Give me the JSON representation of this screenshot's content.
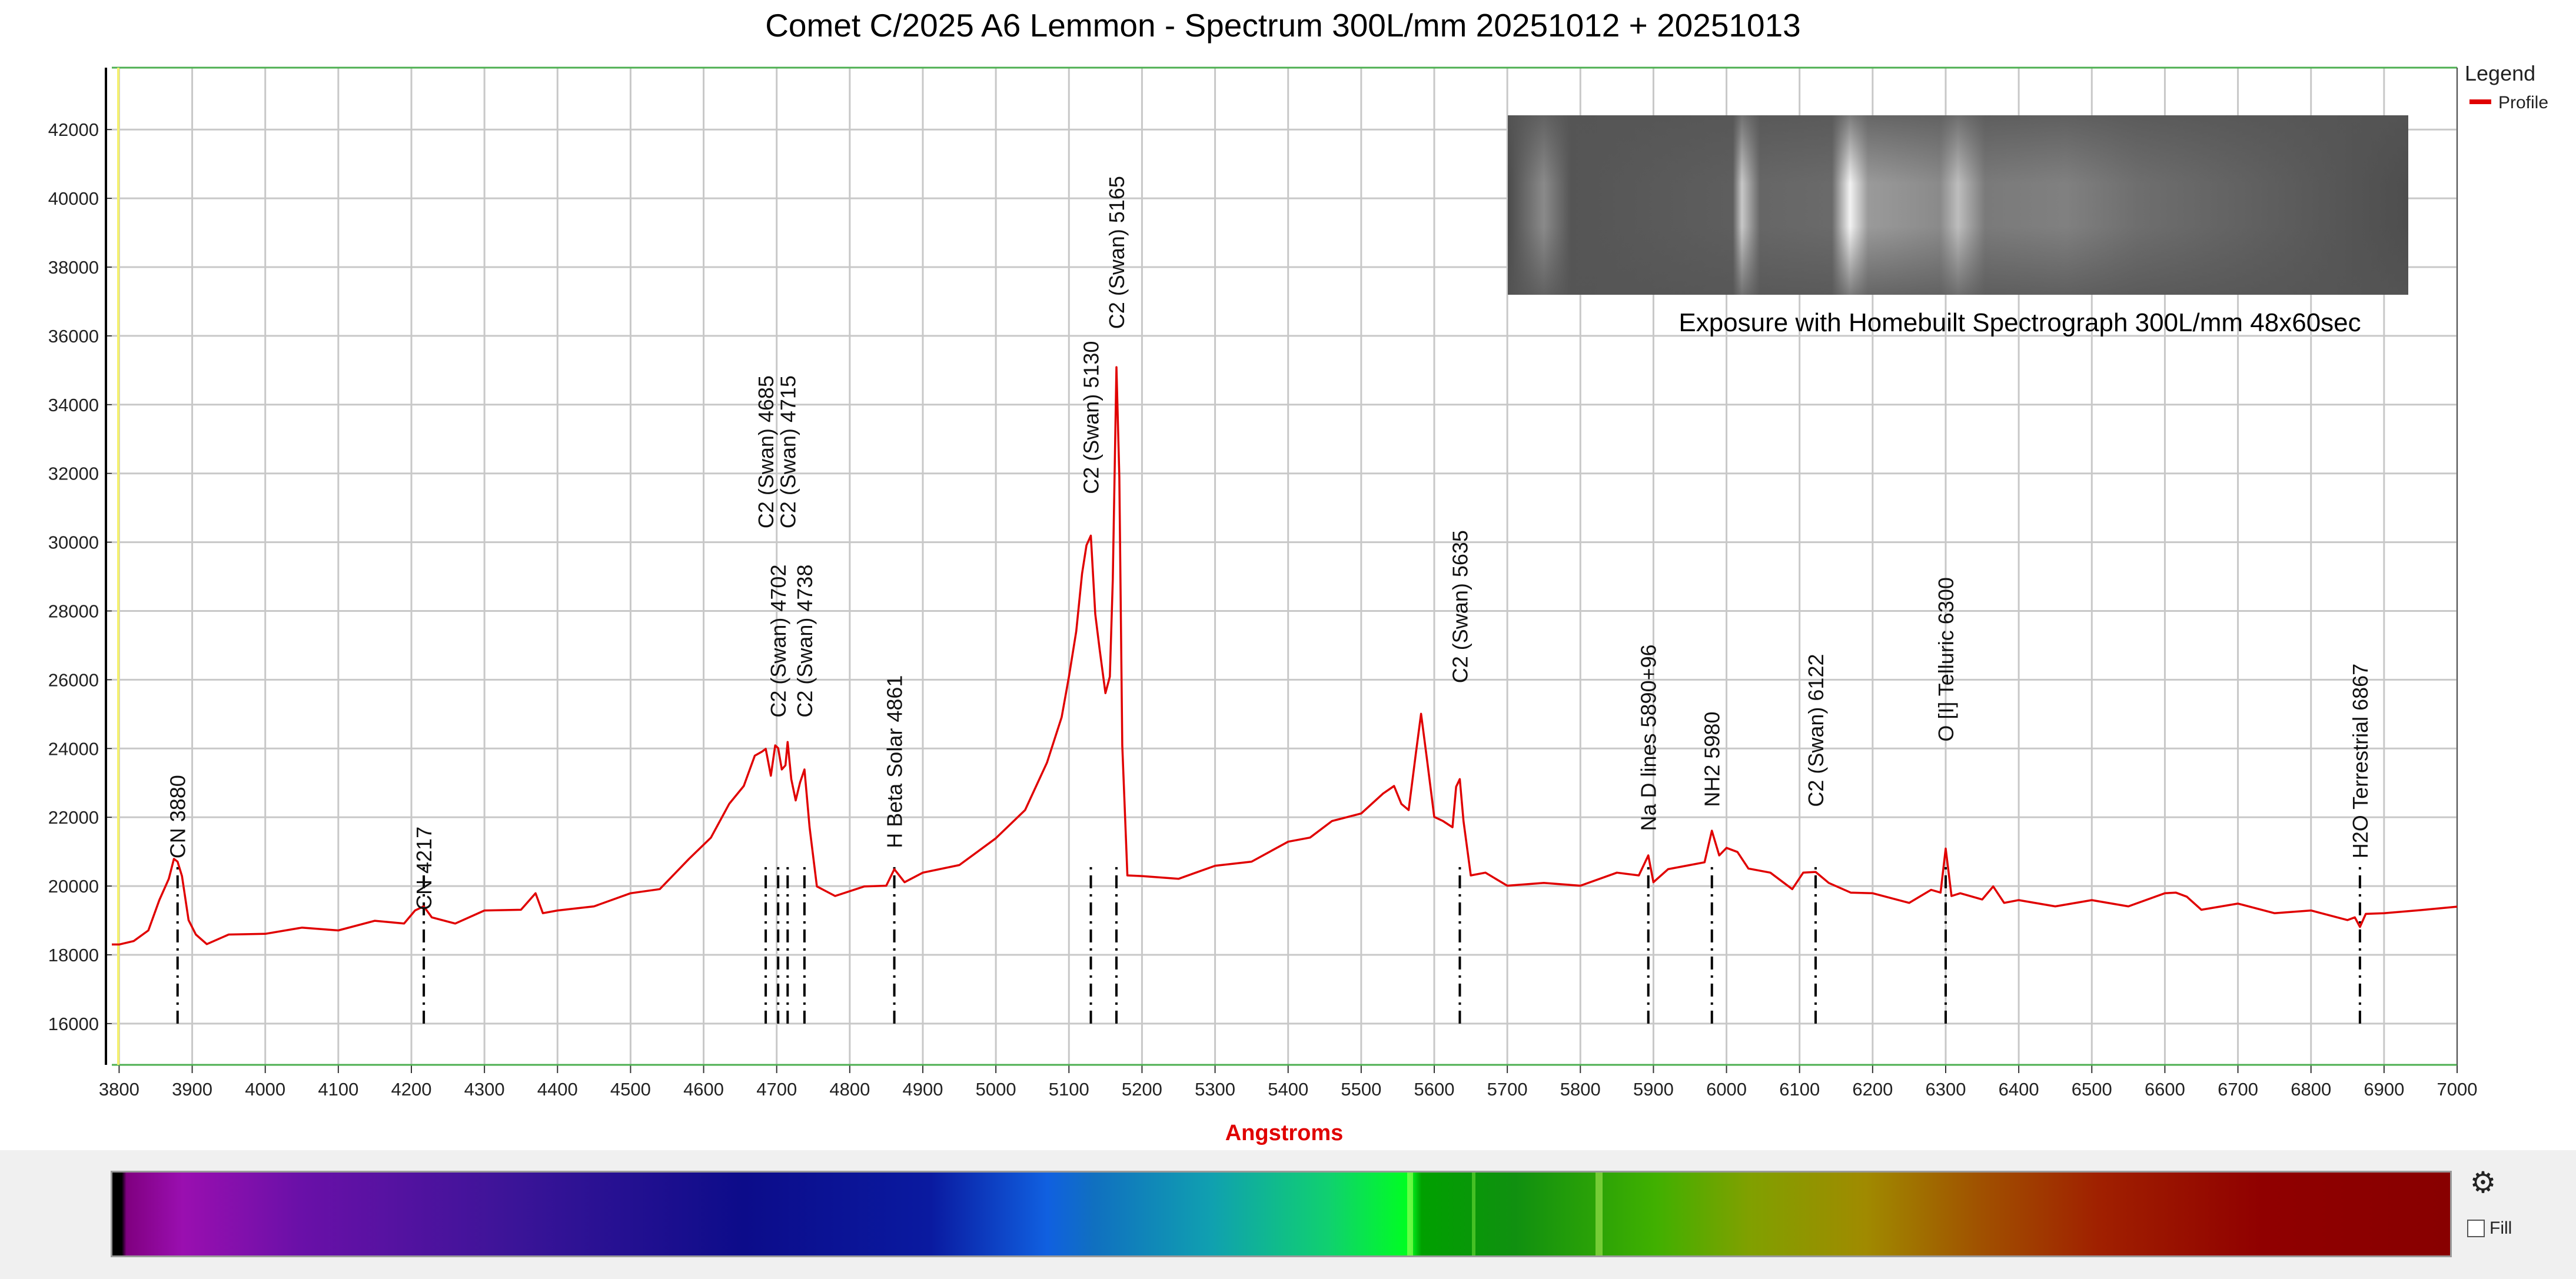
{
  "window": {
    "settings_icon": "gear-icon",
    "fill_label": "Fill",
    "fill_checked": false
  },
  "chart_data": {
    "type": "line",
    "title": "Comet C/2025 A6 Lemmon - Spectrum 300L/mm 20251012 + 20251013",
    "xlabel": "Angstroms",
    "ylabel": "",
    "xlim": [
      3790,
      7000
    ],
    "ylim": [
      14800,
      43800
    ],
    "x_ticks": [
      3800,
      3900,
      4000,
      4100,
      4200,
      4300,
      4400,
      4500,
      4600,
      4700,
      4800,
      4900,
      5000,
      5100,
      5200,
      5300,
      5400,
      5500,
      5600,
      5700,
      5800,
      5900,
      6000,
      6100,
      6200,
      6300,
      6400,
      6500,
      6600,
      6700,
      6800,
      6900,
      7000
    ],
    "y_ticks": [
      16000,
      18000,
      20000,
      22000,
      24000,
      26000,
      28000,
      30000,
      32000,
      34000,
      36000,
      38000,
      40000,
      42000
    ],
    "grid": true,
    "colors": {
      "profile": "#e00000",
      "grid": "#c8c8c8",
      "frame_top": "#4caf50",
      "xlabel": "#e00000"
    },
    "legend": {
      "title": "Legend",
      "position": "top-right",
      "entries": [
        "Profile"
      ]
    },
    "inset": {
      "caption": "Exposure with Homebuilt Spectrograph 300L/mm 48x60sec",
      "position": "top-right"
    },
    "annotations": [
      {
        "label": "CN 3880",
        "x": 3880,
        "y": 20800
      },
      {
        "label": "CN 4217",
        "x": 4217,
        "y": 19300
      },
      {
        "label": "C2 (Swan) 4685",
        "x": 4685,
        "y": 30400
      },
      {
        "label": "C2 (Swan) 4702",
        "x": 4702,
        "y": 24900
      },
      {
        "label": "C2 (Swan) 4715",
        "x": 4715,
        "y": 30400
      },
      {
        "label": "C2 (Swan) 4738",
        "x": 4738,
        "y": 24900
      },
      {
        "label": "H Beta Solar 4861",
        "x": 4861,
        "y": 21100
      },
      {
        "label": "C2 (Swan) 5130",
        "x": 5130,
        "y": 31400
      },
      {
        "label": "C2 (Swan) 5165",
        "x": 5165,
        "y": 36200
      },
      {
        "label": "C2 (Swan) 5635",
        "x": 5635,
        "y": 25900
      },
      {
        "label": "Na D lines 5890+96",
        "x": 5893,
        "y": 21600
      },
      {
        "label": "NH2 5980",
        "x": 5980,
        "y": 22300
      },
      {
        "label": "C2 (Swan) 6122",
        "x": 6122,
        "y": 22300
      },
      {
        "label": "O [I] Telluric 6300",
        "x": 6300,
        "y": 24200
      },
      {
        "label": "H2O Terrestrial 6867",
        "x": 6867,
        "y": 20800
      }
    ],
    "marker_bottom": 16000,
    "series": [
      {
        "name": "Profile",
        "x": [
          3790,
          3800,
          3820,
          3840,
          3855,
          3868,
          3875,
          3880,
          3886,
          3895,
          3905,
          3920,
          3950,
          4000,
          4050,
          4100,
          4150,
          4190,
          4205,
          4217,
          4228,
          4260,
          4300,
          4350,
          4370,
          4380,
          4400,
          4450,
          4500,
          4540,
          4580,
          4610,
          4635,
          4655,
          4670,
          4680,
          4685,
          4692,
          4698,
          4702,
          4707,
          4712,
          4715,
          4720,
          4726,
          4732,
          4738,
          4745,
          4755,
          4780,
          4820,
          4850,
          4861,
          4875,
          4900,
          4950,
          5000,
          5040,
          5070,
          5090,
          5100,
          5110,
          5118,
          5124,
          5130,
          5136,
          5142,
          5150,
          5156,
          5160,
          5165,
          5169,
          5173,
          5180,
          5200,
          5250,
          5300,
          5350,
          5400,
          5430,
          5460,
          5500,
          5530,
          5545,
          5555,
          5565,
          5575,
          5582,
          5590,
          5600,
          5612,
          5625,
          5630,
          5635,
          5640,
          5650,
          5670,
          5700,
          5750,
          5800,
          5850,
          5880,
          5893,
          5900,
          5920,
          5950,
          5970,
          5980,
          5990,
          6000,
          6015,
          6030,
          6060,
          6090,
          6105,
          6122,
          6140,
          6170,
          6200,
          6250,
          6280,
          6293,
          6300,
          6308,
          6320,
          6350,
          6365,
          6380,
          6400,
          6450,
          6500,
          6550,
          6600,
          6615,
          6630,
          6650,
          6700,
          6750,
          6800,
          6850,
          6860,
          6867,
          6875,
          6900,
          6950,
          7000
        ],
        "y": [
          18300,
          18300,
          18400,
          18800,
          19500,
          20300,
          20700,
          20800,
          20200,
          19100,
          18500,
          18400,
          18500,
          18700,
          18700,
          18800,
          18900,
          19000,
          19200,
          19500,
          19000,
          19000,
          19200,
          19400,
          19700,
          19300,
          19200,
          19500,
          19700,
          20000,
          20700,
          21500,
          22300,
          23000,
          23700,
          24000,
          23900,
          23300,
          24000,
          24100,
          23300,
          23600,
          24100,
          23200,
          22400,
          23100,
          23300,
          21800,
          19900,
          19800,
          19900,
          20100,
          20400,
          20200,
          20300,
          20700,
          21300,
          22300,
          23500,
          25000,
          26000,
          27500,
          29000,
          30000,
          30100,
          28000,
          26800,
          25700,
          26000,
          29000,
          35000,
          32000,
          24000,
          20400,
          20200,
          20300,
          20500,
          20800,
          21200,
          21500,
          21800,
          22200,
          22600,
          23000,
          22300,
          22300,
          23800,
          25100,
          23600,
          22100,
          21800,
          21800,
          22800,
          23200,
          21800,
          20400,
          20300,
          20100,
          20000,
          20100,
          20300,
          20400,
          20800,
          20200,
          20400,
          20700,
          20600,
          21700,
          20800,
          21200,
          20900,
          20600,
          20300,
          20000,
          20300,
          20500,
          20000,
          19900,
          19700,
          19600,
          19800,
          19900,
          21000,
          19800,
          19700,
          19700,
          19900,
          19600,
          19500,
          19500,
          19500,
          19500,
          19700,
          19900,
          19600,
          19400,
          19400,
          19300,
          19200,
          19100,
          19000,
          18900,
          19100,
          19300,
          19300,
          19400
        ]
      }
    ]
  }
}
